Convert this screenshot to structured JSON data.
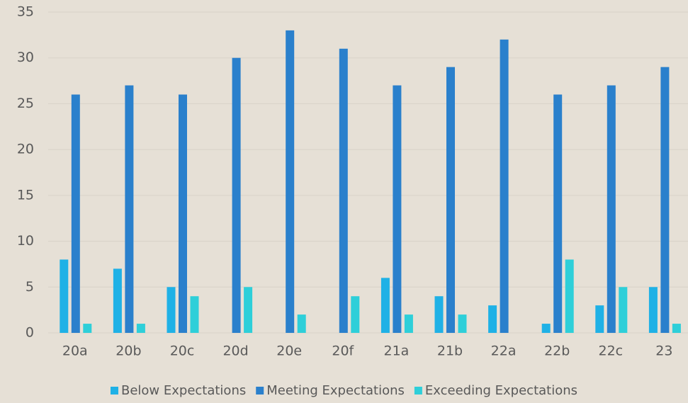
{
  "chart_data": {
    "type": "bar",
    "categories": [
      "20a",
      "20b",
      "20c",
      "20d",
      "20e",
      "20f",
      "21a",
      "21b",
      "22a",
      "22b",
      "22c",
      "23"
    ],
    "series": [
      {
        "name": "Below Expectations",
        "color": "#1fb1e6",
        "values": [
          8,
          7,
          5,
          0,
          0,
          0,
          6,
          4,
          3,
          1,
          3,
          5
        ]
      },
      {
        "name": "Meeting Expectations",
        "color": "#2a80cc",
        "values": [
          26,
          27,
          26,
          30,
          33,
          31,
          27,
          29,
          32,
          26,
          27,
          29
        ]
      },
      {
        "name": "Exceeding Expectations",
        "color": "#2ecfd9",
        "values": [
          1,
          1,
          4,
          5,
          2,
          4,
          2,
          2,
          0,
          8,
          5,
          1
        ]
      }
    ],
    "ylim": [
      0,
      35
    ],
    "yticks": [
      0,
      5,
      10,
      15,
      20,
      25,
      30,
      35
    ],
    "grid": true,
    "legend": "bottom"
  }
}
